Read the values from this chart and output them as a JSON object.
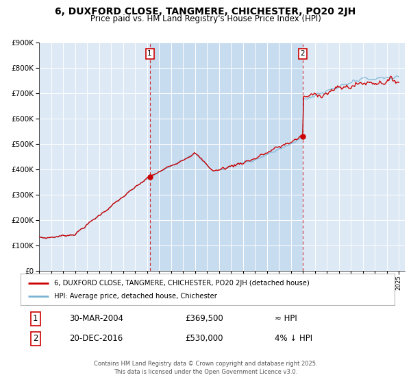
{
  "title": "6, DUXFORD CLOSE, TANGMERE, CHICHESTER, PO20 2JH",
  "subtitle": "Price paid vs. HM Land Registry's House Price Index (HPI)",
  "bg_color": "#dde9f5",
  "fig_bg_color": "#ffffff",
  "grid_color": "#ffffff",
  "hpi_color": "#7ab4d4",
  "price_color": "#cc0000",
  "marker1_date": 2004.23,
  "marker1_price": 369500,
  "marker2_date": 2016.97,
  "marker2_price": 530000,
  "xmin": 1995,
  "xmax": 2025.5,
  "ymin": 0,
  "ymax": 900000,
  "footer": "Contains HM Land Registry data © Crown copyright and database right 2025.\nThis data is licensed under the Open Government Licence v3.0.",
  "legend1_label": "6, DUXFORD CLOSE, TANGMERE, CHICHESTER, PO20 2JH (detached house)",
  "legend2_label": "HPI: Average price, detached house, Chichester",
  "table_row1": [
    "1",
    "30-MAR-2004",
    "£369,500",
    "≈ HPI"
  ],
  "table_row2": [
    "2",
    "20-DEC-2016",
    "£530,000",
    "4% ↓ HPI"
  ]
}
